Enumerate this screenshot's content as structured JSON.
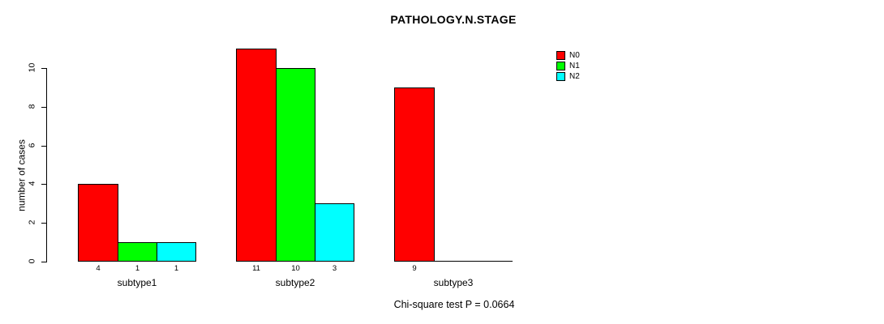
{
  "page": {
    "background": "#FFFFFF"
  },
  "chart_data": {
    "type": "bar",
    "title": "PATHOLOGY.N.STAGE",
    "ylabel": "number of cases",
    "xlabel": "",
    "categories": [
      "subtype1",
      "subtype2",
      "subtype3"
    ],
    "series": [
      {
        "name": "N0",
        "color": "#FF0000",
        "values": [
          4,
          11,
          9
        ]
      },
      {
        "name": "N1",
        "color": "#00FF00",
        "values": [
          1,
          10,
          0
        ]
      },
      {
        "name": "N2",
        "color": "#00FFFF",
        "values": [
          1,
          3,
          0
        ]
      }
    ],
    "bar_value_labels_rule": "value shown under each bar only when value > 0",
    "yticks": [
      0,
      2,
      4,
      6,
      8,
      10
    ],
    "ylim": [
      0,
      11.55
    ],
    "grid": false,
    "legend_position": "top-right",
    "legend": [
      "N0",
      "N1",
      "N2"
    ],
    "caption": "Chi-square test P = 0.0664",
    "axis_color": "#000000",
    "bar_border_color": "#000000"
  }
}
